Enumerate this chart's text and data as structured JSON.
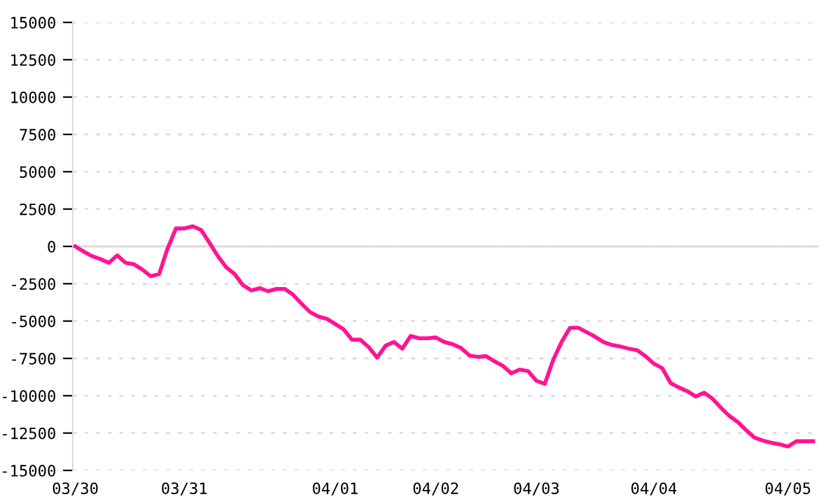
{
  "chart_data": {
    "type": "line",
    "grid": "y",
    "marker": "none",
    "line_style": "solid",
    "categories": [
      "03/30",
      null,
      null,
      null,
      null,
      null,
      null,
      null,
      null,
      null,
      null,
      null,
      null,
      "03/31",
      null,
      null,
      null,
      null,
      null,
      null,
      null,
      null,
      null,
      null,
      null,
      null,
      null,
      null,
      null,
      null,
      null,
      "04/01",
      null,
      null,
      null,
      null,
      null,
      null,
      null,
      null,
      null,
      null,
      null,
      "04/02",
      null,
      null,
      null,
      null,
      null,
      null,
      null,
      null,
      null,
      null,
      null,
      "04/03",
      null,
      null,
      null,
      null,
      null,
      null,
      null,
      null,
      null,
      null,
      null,
      null,
      null,
      "04/04",
      null,
      null,
      null,
      null,
      null,
      null,
      null,
      null,
      null,
      null,
      null,
      null,
      null,
      null,
      null,
      "04/05",
      null,
      null,
      null
    ],
    "ylim": [
      -15000,
      15000
    ],
    "yticks": [
      -15000,
      -12500,
      -10000,
      -7500,
      -5000,
      -2500,
      0,
      2500,
      5000,
      7500,
      10000,
      12500,
      15000
    ],
    "series": [
      {
        "color": "#ff1493",
        "values": [
          0,
          -350,
          -650,
          -850,
          -1100,
          -600,
          -1100,
          -1200,
          -1550,
          -2000,
          -1850,
          -150,
          1200,
          1200,
          1350,
          1100,
          250,
          -650,
          -1400,
          -1850,
          -2600,
          -2950,
          -2800,
          -3000,
          -2850,
          -2850,
          -3250,
          -3850,
          -4400,
          -4700,
          -4850,
          -5200,
          -5550,
          -6250,
          -6250,
          -6750,
          -7450,
          -6650,
          -6400,
          -6850,
          -6000,
          -6150,
          -6150,
          -6100,
          -6400,
          -6550,
          -6800,
          -7300,
          -7400,
          -7350,
          -7700,
          -8000,
          -8500,
          -8250,
          -8350,
          -9000,
          -9200,
          -7600,
          -6400,
          -5450,
          -5450,
          -5750,
          -6050,
          -6400,
          -6600,
          -6700,
          -6850,
          -6950,
          -7350,
          -7850,
          -8150,
          -9150,
          -9450,
          -9700,
          -10050,
          -9800,
          -10200,
          -10800,
          -11350,
          -11750,
          -12300,
          -12800,
          -13000,
          -13150,
          -13250,
          -13400,
          -13050,
          -13050,
          -13050
        ]
      }
    ]
  }
}
